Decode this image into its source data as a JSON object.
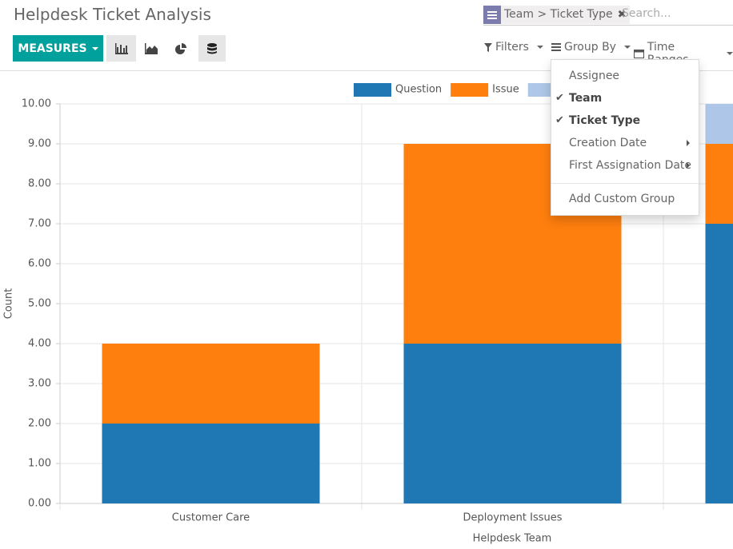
{
  "header": {
    "title": "Helpdesk Ticket Analysis",
    "search_facet": "Team > Ticket Type",
    "search_placeholder": "Search..."
  },
  "toolbar": {
    "measures": "MEASURES",
    "filters": "Filters",
    "group_by": "Group By",
    "time_ranges": "Time Ranges"
  },
  "group_by_menu": {
    "items": [
      {
        "label": "Assignee",
        "checked": false,
        "submenu": false
      },
      {
        "label": "Team",
        "checked": true,
        "submenu": false
      },
      {
        "label": "Ticket Type",
        "checked": true,
        "submenu": false
      },
      {
        "label": "Creation Date",
        "checked": false,
        "submenu": true
      },
      {
        "label": "First Assignation Date",
        "checked": false,
        "submenu": true
      }
    ],
    "add_custom": "Add Custom Group"
  },
  "chart_data": {
    "type": "bar",
    "stacked": true,
    "grid": true,
    "categories": [
      "Customer Care",
      "Deployment Issues",
      null
    ],
    "series": [
      {
        "name": "Question",
        "color": "#1f77b4",
        "values": [
          2,
          4,
          7
        ]
      },
      {
        "name": "Issue",
        "color": "#ff7f0e",
        "values": [
          2,
          5,
          2
        ]
      },
      {
        "name": null,
        "color": "#aec7e8",
        "values": [
          0,
          0,
          1
        ]
      }
    ],
    "ylim": [
      0,
      10
    ],
    "yticks": [
      {
        "value": 0,
        "label": "0.00"
      },
      {
        "value": 1,
        "label": "1.00"
      },
      {
        "value": 2,
        "label": "2.00"
      },
      {
        "value": 3,
        "label": "3.00"
      },
      {
        "value": 4,
        "label": "4.00"
      },
      {
        "value": 5,
        "label": "5.00"
      },
      {
        "value": 6,
        "label": "6.00"
      },
      {
        "value": 7,
        "label": "7.00"
      },
      {
        "value": 8,
        "label": "8.00"
      },
      {
        "value": 9,
        "label": "9.00"
      },
      {
        "value": 10,
        "label": "10.00"
      }
    ],
    "x_label": "Helpdesk Team",
    "y_label": "Count",
    "legend": "top"
  }
}
